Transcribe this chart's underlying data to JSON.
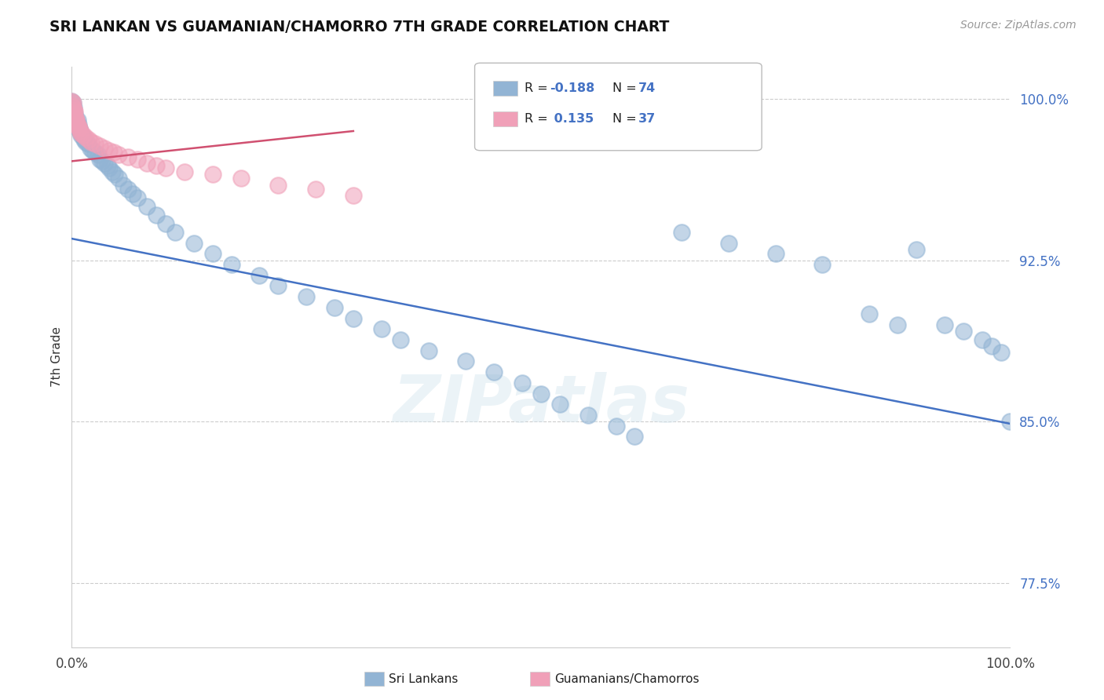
{
  "title": "SRI LANKAN VS GUAMANIAN/CHAMORRO 7TH GRADE CORRELATION CHART",
  "source_text": "Source: ZipAtlas.com",
  "ylabel": "7th Grade",
  "ytick_labels": [
    "77.5%",
    "85.0%",
    "92.5%",
    "100.0%"
  ],
  "ytick_values": [
    0.775,
    0.85,
    0.925,
    1.0
  ],
  "legend_r_blue": "-0.188",
  "legend_n_blue": "74",
  "legend_r_pink": "0.135",
  "legend_n_pink": "37",
  "blue_color": "#92b4d4",
  "pink_color": "#f0a0b8",
  "blue_line_color": "#4472c4",
  "pink_line_color": "#d05070",
  "watermark_text": "ZIPatlas",
  "blue_line_x0": 0.0,
  "blue_line_x1": 1.0,
  "blue_line_y0": 0.935,
  "blue_line_y1": 0.849,
  "pink_line_x0": 0.0,
  "pink_line_x1": 0.3,
  "pink_line_y0": 0.971,
  "pink_line_y1": 0.985,
  "xlim": [
    0.0,
    1.0
  ],
  "ylim": [
    0.745,
    1.015
  ],
  "blue_x": [
    0.0,
    0.0,
    0.0,
    0.001,
    0.001,
    0.002,
    0.002,
    0.003,
    0.003,
    0.004,
    0.005,
    0.005,
    0.006,
    0.007,
    0.008,
    0.009,
    0.01,
    0.01,
    0.012,
    0.013,
    0.015,
    0.017,
    0.02,
    0.022,
    0.025,
    0.028,
    0.03,
    0.032,
    0.035,
    0.038,
    0.04,
    0.043,
    0.046,
    0.05,
    0.055,
    0.06,
    0.065,
    0.07,
    0.08,
    0.09,
    0.1,
    0.11,
    0.13,
    0.15,
    0.17,
    0.2,
    0.22,
    0.25,
    0.28,
    0.3,
    0.33,
    0.35,
    0.38,
    0.42,
    0.45,
    0.48,
    0.5,
    0.52,
    0.55,
    0.58,
    0.6,
    0.65,
    0.7,
    0.75,
    0.8,
    0.85,
    0.88,
    0.9,
    0.93,
    0.95,
    0.97,
    0.98,
    0.99,
    1.0
  ],
  "blue_y": [
    0.999,
    0.997,
    0.995,
    0.998,
    0.994,
    0.996,
    0.992,
    0.993,
    0.99,
    0.991,
    0.989,
    0.987,
    0.99,
    0.988,
    0.986,
    0.985,
    0.983,
    0.984,
    0.982,
    0.981,
    0.98,
    0.979,
    0.977,
    0.976,
    0.975,
    0.974,
    0.972,
    0.971,
    0.97,
    0.969,
    0.968,
    0.966,
    0.965,
    0.963,
    0.96,
    0.958,
    0.956,
    0.954,
    0.95,
    0.946,
    0.942,
    0.938,
    0.933,
    0.928,
    0.923,
    0.918,
    0.913,
    0.908,
    0.903,
    0.898,
    0.893,
    0.888,
    0.883,
    0.878,
    0.873,
    0.868,
    0.863,
    0.858,
    0.853,
    0.848,
    0.843,
    0.938,
    0.933,
    0.928,
    0.923,
    0.9,
    0.895,
    0.93,
    0.895,
    0.892,
    0.888,
    0.885,
    0.882,
    0.85
  ],
  "pink_x": [
    0.0,
    0.0,
    0.001,
    0.001,
    0.002,
    0.002,
    0.003,
    0.003,
    0.004,
    0.005,
    0.005,
    0.006,
    0.007,
    0.008,
    0.009,
    0.01,
    0.012,
    0.015,
    0.018,
    0.021,
    0.025,
    0.03,
    0.035,
    0.04,
    0.045,
    0.05,
    0.06,
    0.07,
    0.08,
    0.09,
    0.1,
    0.12,
    0.15,
    0.18,
    0.22,
    0.26,
    0.3
  ],
  "pink_y": [
    0.999,
    0.997,
    0.998,
    0.996,
    0.995,
    0.993,
    0.994,
    0.992,
    0.991,
    0.99,
    0.989,
    0.988,
    0.987,
    0.986,
    0.985,
    0.984,
    0.983,
    0.982,
    0.981,
    0.98,
    0.979,
    0.978,
    0.977,
    0.976,
    0.975,
    0.974,
    0.973,
    0.972,
    0.97,
    0.969,
    0.968,
    0.966,
    0.965,
    0.963,
    0.96,
    0.958,
    0.955
  ]
}
